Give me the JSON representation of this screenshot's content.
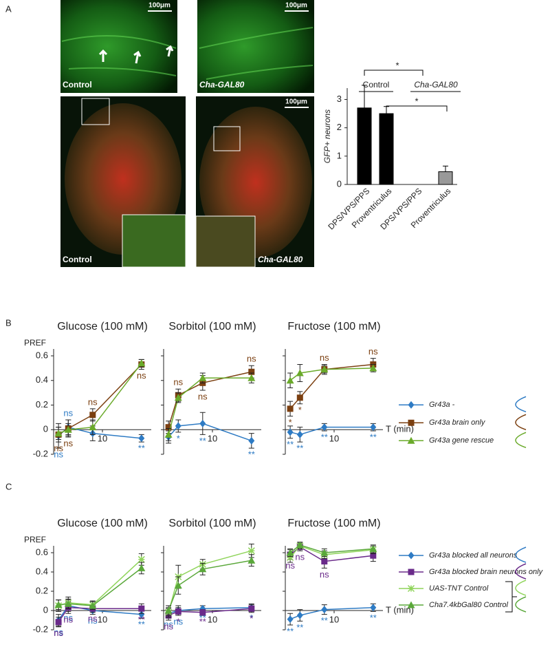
{
  "panel_labels": [
    "A",
    "B",
    "C"
  ],
  "micrographs": {
    "scale_bar": "100μm",
    "control": "Control",
    "mutant": "Cha-GAL80"
  },
  "chart_data": [
    {
      "type": "bar",
      "ylabel": "GFP+ neurons",
      "categories": [
        "DPS/VPS/PPS",
        "Proventriculus",
        "DPS/VPS/PPS",
        "Proventriculus"
      ],
      "values": [
        2.7,
        2.5,
        0,
        0.45
      ],
      "errors": [
        0.8,
        0.25,
        0,
        0.2
      ],
      "colors": [
        "#000000",
        "#000000",
        "#000000",
        "#999999"
      ],
      "group_labels": [
        "Control",
        "Cha-GAL80"
      ],
      "significance": [
        "*",
        "*"
      ],
      "ylim": [
        0,
        3.4
      ],
      "yticks": [
        0,
        1,
        2,
        3
      ]
    },
    {
      "type": "line",
      "title": "Glucose (100 mM)",
      "ylabel": "PREF",
      "x": [
        1,
        3,
        8,
        18
      ],
      "xlim": [
        0,
        20
      ],
      "xticks": [
        10
      ],
      "ylim": [
        -0.2,
        0.6
      ],
      "yticks": [
        -0.2,
        0,
        0.2,
        0.4,
        0.6
      ],
      "series": [
        {
          "name": "Gr43a -",
          "color": "#2e7bc4",
          "marker": "diamond",
          "values": [
            -0.05,
            0.02,
            -0.03,
            -0.07
          ],
          "errors": [
            0.1,
            0.06,
            0.06,
            0.03
          ],
          "significance": [
            "ns",
            "ns",
            null,
            "**"
          ]
        },
        {
          "name": "Gr43a brain only",
          "color": "#7b3f10",
          "marker": "square",
          "values": [
            -0.04,
            0.01,
            0.12,
            0.53
          ],
          "errors": [
            0.06,
            0.07,
            0.05,
            0.04
          ],
          "significance": [
            "ns",
            "ns",
            "ns",
            "ns"
          ]
        },
        {
          "name": "Gr43a gene rescue",
          "color": "#6aaa2a",
          "marker": "triangle",
          "values": [
            -0.03,
            0.0,
            0.02,
            0.54
          ],
          "errors": [
            0.05,
            0.05,
            0.06,
            0.03
          ],
          "significance": [
            null,
            null,
            null,
            null
          ]
        }
      ]
    },
    {
      "type": "line",
      "title": "Sorbitol (100 mM)",
      "x": [
        1,
        3,
        8,
        18
      ],
      "xlim": [
        0,
        20
      ],
      "xticks": [
        10
      ],
      "ylim": [
        -0.2,
        0.6
      ],
      "yticks": [
        -0.2,
        0,
        0.2,
        0.4,
        0.6
      ],
      "series": [
        {
          "name": "Gr43a -",
          "color": "#2e7bc4",
          "marker": "diamond",
          "values": [
            -0.06,
            0.03,
            0.05,
            -0.09
          ],
          "errors": [
            0.05,
            0.05,
            0.09,
            0.06
          ],
          "significance": [
            null,
            "*",
            "**",
            "**"
          ]
        },
        {
          "name": "Gr43a brain only",
          "color": "#7b3f10",
          "marker": "square",
          "values": [
            0.02,
            0.28,
            0.38,
            0.47
          ],
          "errors": [
            0.05,
            0.05,
            0.06,
            0.05
          ],
          "significance": [
            null,
            "ns",
            "ns",
            "ns"
          ]
        },
        {
          "name": "Gr43a gene rescue",
          "color": "#6aaa2a",
          "marker": "triangle",
          "values": [
            -0.04,
            0.26,
            0.42,
            0.42
          ],
          "errors": [
            0.05,
            0.04,
            0.04,
            0.04
          ],
          "significance": [
            null,
            null,
            null,
            null
          ]
        }
      ]
    },
    {
      "type": "line",
      "title": "Fructose (100 mM)",
      "xlabel": "T (min)",
      "x": [
        1,
        3,
        8,
        18
      ],
      "xlim": [
        0,
        20
      ],
      "xticks": [
        10
      ],
      "ylim": [
        -0.2,
        0.6
      ],
      "yticks": [
        -0.2,
        0,
        0.2,
        0.4,
        0.6
      ],
      "legend": true,
      "series": [
        {
          "name": "Gr43a -",
          "color": "#2e7bc4",
          "marker": "diamond",
          "values": [
            -0.02,
            -0.04,
            0.02,
            0.02
          ],
          "errors": [
            0.05,
            0.06,
            0.03,
            0.03
          ],
          "significance": [
            "**",
            "**",
            "**",
            "**"
          ]
        },
        {
          "name": "Gr43a brain only",
          "color": "#7b3f10",
          "marker": "square",
          "values": [
            0.17,
            0.26,
            0.49,
            0.53
          ],
          "errors": [
            0.06,
            0.05,
            0.04,
            0.05
          ],
          "significance": [
            "*",
            "*",
            "ns",
            "ns"
          ]
        },
        {
          "name": "Gr43a gene rescue",
          "color": "#6aaa2a",
          "marker": "triangle",
          "values": [
            0.4,
            0.46,
            0.49,
            0.5
          ],
          "errors": [
            0.06,
            0.07,
            0.03,
            0.03
          ],
          "significance": [
            null,
            null,
            null,
            null
          ]
        }
      ]
    },
    {
      "type": "line",
      "title": "Glucose (100 mM)",
      "ylabel": "PREF",
      "x": [
        1,
        3,
        8,
        18
      ],
      "xlim": [
        0,
        20
      ],
      "xticks": [
        10
      ],
      "ylim": [
        -0.2,
        0.6
      ],
      "yticks": [
        -0.2,
        0,
        0.2,
        0.4,
        0.6
      ],
      "series": [
        {
          "name": "Gr43a blocked all neurons",
          "color": "#2e7bc4",
          "marker": "diamond",
          "values": [
            -0.1,
            0.05,
            0.0,
            -0.04
          ],
          "errors": [
            0.06,
            0.06,
            0.04,
            0.04
          ],
          "significance": [
            "ns",
            "ns",
            "ns",
            "**"
          ]
        },
        {
          "name": "Gr43a blocked brain neurons only",
          "color": "#6a2a8a",
          "marker": "square",
          "values": [
            -0.12,
            0.03,
            0.02,
            0.02
          ],
          "errors": [
            0.05,
            0.06,
            0.04,
            0.05
          ],
          "significance": [
            "ns",
            "ns",
            "ns",
            "**"
          ]
        },
        {
          "name": "UAS-TNT Control",
          "color": "#8fd45a",
          "marker": "star",
          "values": [
            0.05,
            0.08,
            0.06,
            0.53
          ],
          "errors": [
            0.06,
            0.06,
            0.04,
            0.06
          ],
          "significance": [
            null,
            null,
            null,
            null
          ]
        },
        {
          "name": "Cha7.4kbGal80 Control",
          "color": "#5aa83a",
          "marker": "triangle",
          "values": [
            0.06,
            0.07,
            0.05,
            0.44
          ],
          "errors": [
            0.05,
            0.05,
            0.04,
            0.06
          ],
          "significance": [
            null,
            null,
            null,
            null
          ]
        }
      ]
    },
    {
      "type": "line",
      "title": "Sorbitol (100 mM)",
      "x": [
        1,
        3,
        8,
        18
      ],
      "xlim": [
        0,
        20
      ],
      "xticks": [
        10
      ],
      "ylim": [
        -0.2,
        0.6
      ],
      "yticks": [
        -0.2,
        0,
        0.2,
        0.4,
        0.6
      ],
      "series": [
        {
          "name": "Gr43a blocked all neurons",
          "color": "#2e7bc4",
          "marker": "diamond",
          "values": [
            -0.03,
            0.0,
            0.02,
            0.03
          ],
          "errors": [
            0.05,
            0.05,
            0.03,
            0.04
          ],
          "significance": [
            "ns",
            "ns",
            "**",
            "*"
          ]
        },
        {
          "name": "Gr43a blocked brain neurons only",
          "color": "#6a2a8a",
          "marker": "square",
          "values": [
            -0.05,
            -0.01,
            -0.02,
            0.02
          ],
          "errors": [
            0.05,
            0.04,
            0.03,
            0.04
          ],
          "significance": [
            "ns",
            "*",
            "**",
            "*"
          ]
        },
        {
          "name": "UAS-TNT Control",
          "color": "#8fd45a",
          "marker": "star",
          "values": [
            -0.02,
            0.35,
            0.48,
            0.62
          ],
          "errors": [
            0.05,
            0.12,
            0.05,
            0.07
          ],
          "significance": [
            null,
            null,
            null,
            null
          ]
        },
        {
          "name": "Cha7.4kbGal80 Control",
          "color": "#5aa83a",
          "marker": "triangle",
          "values": [
            0.0,
            0.26,
            0.43,
            0.52
          ],
          "errors": [
            0.05,
            0.09,
            0.06,
            0.06
          ],
          "significance": [
            null,
            null,
            null,
            null
          ]
        }
      ]
    },
    {
      "type": "line",
      "title": "Fructose (100 mM)",
      "xlabel": "T (min)",
      "x": [
        1,
        3,
        8,
        18
      ],
      "xlim": [
        0,
        20
      ],
      "xticks": [
        10
      ],
      "ylim": [
        -0.2,
        0.6
      ],
      "yticks": [
        -0.2,
        0,
        0.2,
        0.4,
        0.6
      ],
      "legend": true,
      "series": [
        {
          "name": "Gr43a blocked all neurons",
          "color": "#2e7bc4",
          "marker": "diamond",
          "values": [
            -0.09,
            -0.05,
            0.01,
            0.03
          ],
          "errors": [
            0.06,
            0.06,
            0.05,
            0.04
          ],
          "significance": [
            "**",
            "**",
            "**",
            "**"
          ]
        },
        {
          "name": "Gr43a blocked brain neurons only",
          "color": "#6a2a8a",
          "marker": "square",
          "values": [
            0.58,
            0.66,
            0.51,
            0.57
          ],
          "errors": [
            0.05,
            0.04,
            0.07,
            0.06
          ],
          "significance": [
            "ns",
            "ns",
            "ns",
            null
          ]
        },
        {
          "name": "UAS-TNT Control",
          "color": "#8fd45a",
          "marker": "star",
          "values": [
            0.55,
            0.67,
            0.58,
            0.63
          ],
          "errors": [
            0.05,
            0.03,
            0.04,
            0.04
          ],
          "significance": [
            null,
            null,
            null,
            null
          ]
        },
        {
          "name": "Cha7.4kbGal80 Control",
          "color": "#5aa83a",
          "marker": "triangle",
          "values": [
            0.6,
            0.68,
            0.6,
            0.64
          ],
          "errors": [
            0.04,
            0.03,
            0.04,
            0.04
          ],
          "significance": [
            null,
            null,
            null,
            null
          ]
        }
      ]
    }
  ]
}
